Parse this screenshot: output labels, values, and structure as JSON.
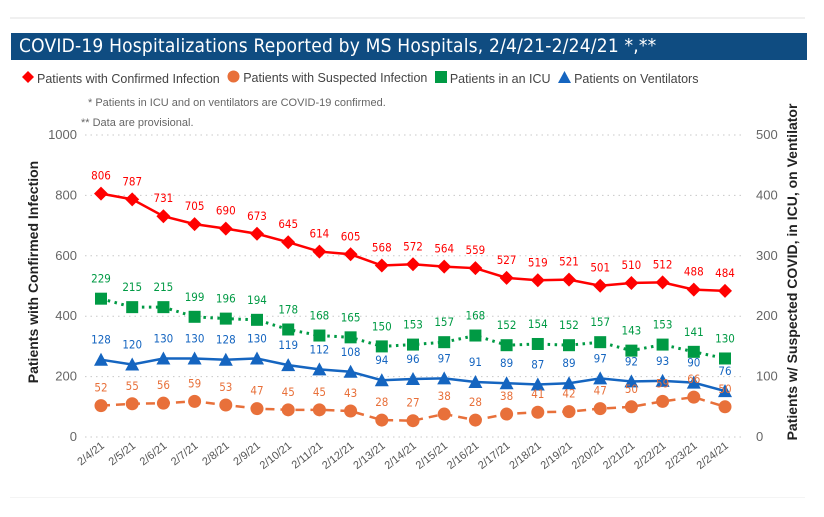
{
  "title": "COVID-19 Hospitalizations Reported by MS Hospitals, 2/4/21-2/24/21 *,**",
  "notes": {
    "note1": "* Patients in ICU and on ventilators are COVID-19 confirmed.",
    "note2": "** Data are provisional."
  },
  "legend": [
    {
      "label": "Patients with Confirmed Infection",
      "icon": "diamond-icon",
      "color": "#ff0000"
    },
    {
      "label": "Patients with Suspected Infection",
      "icon": "circle-icon",
      "color": "#e8703a"
    },
    {
      "label": "Patients in an ICU",
      "icon": "square-icon",
      "color": "#009a44"
    },
    {
      "label": "Patients on Ventilators",
      "icon": "triangle-icon",
      "color": "#1565c0"
    }
  ],
  "chart_data": {
    "type": "line",
    "title": "COVID-19 Hospitalizations Reported by MS Hospitals, 2/4/21-2/24/21 *,**",
    "x": [
      "2/4/21",
      "2/5/21",
      "2/6/21",
      "2/7/21",
      "2/8/21",
      "2/9/21",
      "2/10/21",
      "2/11/21",
      "2/12/21",
      "2/13/21",
      "2/14/21",
      "2/15/21",
      "2/16/21",
      "2/17/21",
      "2/18/21",
      "2/19/21",
      "2/20/21",
      "2/21/21",
      "2/22/21",
      "2/23/21",
      "2/24/21"
    ],
    "xlabel": "",
    "ylabel": "Patients with Confirmed Infection",
    "y2label": "Patients w/ Suspected COVID, in ICU, on Ventilator",
    "ylim": [
      0,
      1000
    ],
    "y2lim": [
      0,
      500
    ],
    "yticks": [
      "0",
      "200",
      "400",
      "600",
      "800",
      "1000"
    ],
    "y2ticks": [
      "0",
      "100",
      "200",
      "300",
      "400",
      "500"
    ],
    "grid": true,
    "legend_position": "top",
    "series": [
      {
        "name": "Patients with Confirmed Infection",
        "axis": "left",
        "color": "#ff0000",
        "marker": "diamond",
        "line": "solid",
        "values": [
          806,
          787,
          731,
          705,
          690,
          673,
          645,
          614,
          605,
          568,
          572,
          564,
          559,
          527,
          519,
          521,
          501,
          510,
          512,
          488,
          484
        ]
      },
      {
        "name": "Patients with Suspected Infection",
        "axis": "right",
        "color": "#e8703a",
        "marker": "circle",
        "line": "dashed",
        "values": [
          52,
          55,
          56,
          59,
          53,
          47,
          45,
          45,
          43,
          28,
          27,
          38,
          28,
          38,
          41,
          42,
          47,
          50,
          59,
          66,
          50
        ]
      },
      {
        "name": "Patients in an ICU",
        "axis": "right",
        "color": "#009a44",
        "marker": "square",
        "line": "dotted",
        "values": [
          229,
          215,
          215,
          199,
          196,
          194,
          178,
          168,
          165,
          150,
          153,
          157,
          168,
          152,
          154,
          152,
          157,
          143,
          153,
          141,
          130
        ]
      },
      {
        "name": "Patients on Ventilators",
        "axis": "right",
        "color": "#1565c0",
        "marker": "triangle",
        "line": "solid",
        "values": [
          128,
          120,
          130,
          130,
          128,
          130,
          119,
          112,
          108,
          94,
          96,
          97,
          91,
          89,
          87,
          89,
          97,
          92,
          93,
          90,
          76
        ]
      }
    ]
  }
}
